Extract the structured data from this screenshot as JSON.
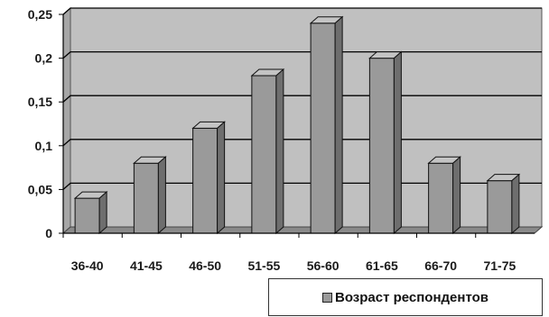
{
  "chart_data": {
    "type": "bar",
    "categories": [
      "36-40",
      "41-45",
      "46-50",
      "51-55",
      "56-60",
      "61-65",
      "66-70",
      "71-75"
    ],
    "series": [
      {
        "name": "Возраст респондентов",
        "values": [
          0.04,
          0.08,
          0.12,
          0.18,
          0.24,
          0.2,
          0.08,
          0.06
        ]
      }
    ],
    "y_ticks": [
      "0",
      "0,05",
      "0,1",
      "0,15",
      "0,2",
      "0,25"
    ],
    "ylim": [
      0,
      0.25
    ],
    "grid": true,
    "legend_position": "bottom-right",
    "three_d": true,
    "colors": {
      "plot_bg": "#c0c0c0",
      "wall_side": "#a6a6a6",
      "bar_front": "#9a9a9a",
      "bar_top": "#c4c4c4",
      "bar_side": "#6e6e6e",
      "gridline": "#000000"
    }
  }
}
